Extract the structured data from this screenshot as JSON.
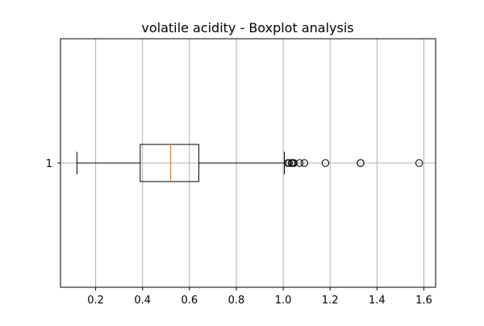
{
  "chart_data": {
    "type": "boxplot",
    "orientation": "horizontal",
    "title": "volatile acidity - Boxplot analysis",
    "xlabel": "",
    "ylabel": "",
    "xlim": [
      0.05,
      1.65
    ],
    "x_ticks": [
      0.2,
      0.4,
      0.6,
      0.8,
      1.0,
      1.2,
      1.4,
      1.6
    ],
    "x_tick_labels": [
      "0.2",
      "0.4",
      "0.6",
      "0.8",
      "1.0",
      "1.2",
      "1.4",
      "1.6"
    ],
    "y_tick_labels": [
      "1"
    ],
    "grid": true,
    "boxes": [
      {
        "label": "1",
        "whisker_low": 0.12,
        "q1": 0.39,
        "median": 0.52,
        "q3": 0.64,
        "whisker_high": 1.005,
        "outliers": [
          1.02,
          1.025,
          1.035,
          1.04,
          1.045,
          1.07,
          1.09,
          1.18,
          1.33,
          1.33,
          1.58
        ]
      }
    ],
    "colors": {
      "box": "#000000",
      "median": "#ff7f0e",
      "grid": "#b0b0b0"
    }
  }
}
